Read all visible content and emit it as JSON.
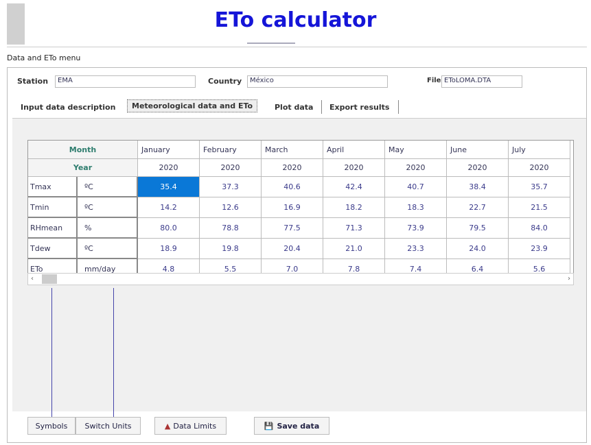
{
  "title": "ETo calculator",
  "menu": "Data and ETo menu",
  "fields": [
    {
      "label": "Station",
      "value": "EMA"
    },
    {
      "label": "Country",
      "value": "México"
    },
    {
      "label": "File",
      "value": "EToLOMA.DTA"
    }
  ],
  "tabs": [
    "Input data description",
    "Meteorological data and ETo",
    "Plot data",
    "Export results"
  ],
  "table": {
    "month_label": "Month",
    "year_label": "Year",
    "months": [
      "January",
      "February",
      "March",
      "April",
      "May",
      "June",
      "July"
    ],
    "years": [
      "2020",
      "2020",
      "2020",
      "2020",
      "2020",
      "2020",
      "2020"
    ],
    "rows": [
      {
        "name": "Tmax",
        "unit": "ºC",
        "values": [
          "35.4",
          "37.3",
          "40.6",
          "42.4",
          "40.7",
          "38.4",
          "35.7"
        ]
      },
      {
        "name": "Tmin",
        "unit": "ºC",
        "values": [
          "14.2",
          "12.6",
          "16.9",
          "18.2",
          "18.3",
          "22.7",
          "21.5"
        ]
      },
      {
        "name": "RHmean",
        "unit": "%",
        "values": [
          "80.0",
          "78.8",
          "77.5",
          "71.3",
          "73.9",
          "79.5",
          "84.0"
        ]
      },
      {
        "name": "Tdew",
        "unit": "ºC",
        "values": [
          "18.9",
          "19.8",
          "20.4",
          "21.0",
          "23.3",
          "24.0",
          "23.9"
        ]
      },
      {
        "name": "ETo",
        "unit": "mm/day",
        "values": [
          "4.8",
          "5.5",
          "7.0",
          "7.8",
          "7.4",
          "6.4",
          "5.6"
        ]
      }
    ]
  },
  "buttons": [
    "Symbols",
    "Switch Units",
    "Data Limits",
    "Save data"
  ]
}
